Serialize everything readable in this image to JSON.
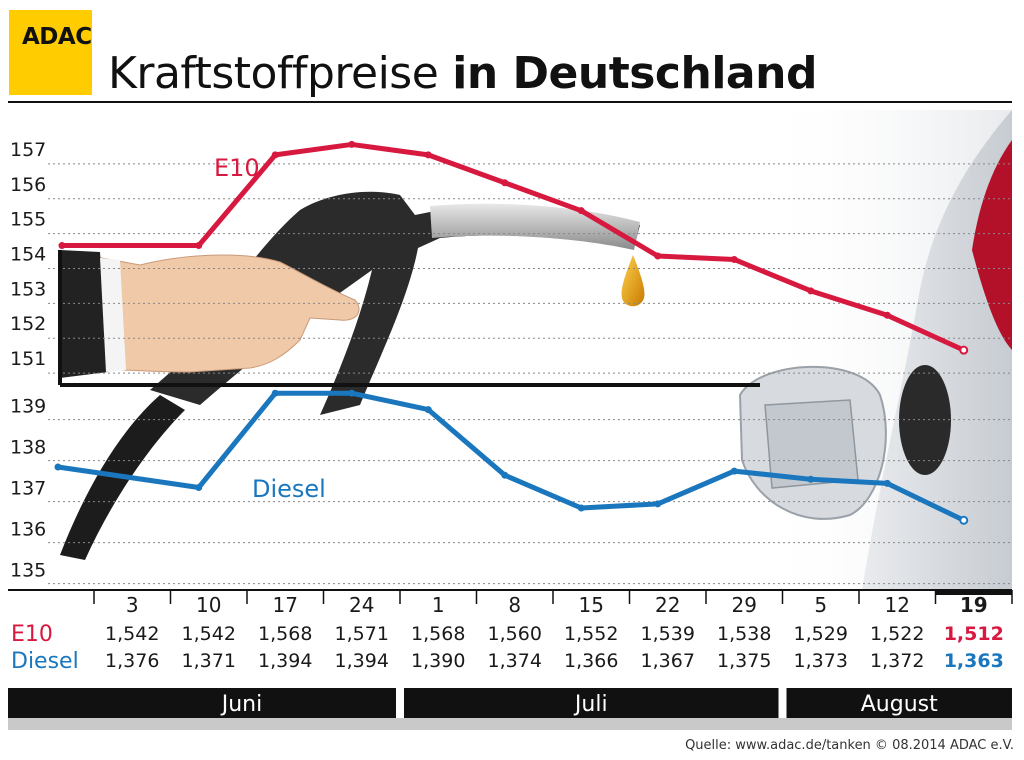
{
  "logo": "ADAC",
  "title": {
    "light": "Kraftstoffpreise",
    "bold": "in Deutschland"
  },
  "source": "Quelle: www.adac.de/tanken   © 08.2014  ADAC e.V.",
  "colors": {
    "e10": "#d7193f",
    "diesel": "#1b77bd",
    "accent": "#ffcc00",
    "dark": "#111111"
  },
  "illustration": [
    "fuel-nozzle",
    "hand",
    "oil-drop",
    "car-fuel-flap"
  ],
  "chart_data": {
    "type": "line",
    "title": "Kraftstoffpreise in Deutschland",
    "categories": [
      "3",
      "10",
      "17",
      "24",
      "1",
      "8",
      "15",
      "22",
      "29",
      "5",
      "12",
      "19"
    ],
    "series": [
      {
        "name": "E10",
        "color": "#d7193f",
        "values": [
          154.2,
          154.2,
          156.8,
          157.1,
          156.8,
          156.0,
          155.2,
          153.9,
          153.8,
          152.9,
          152.2,
          151.2
        ],
        "labels": [
          "1,542",
          "1,542",
          "1,568",
          "1,571",
          "1,568",
          "1,560",
          "1,552",
          "1,539",
          "1,538",
          "1,529",
          "1,522",
          "1,512"
        ],
        "ylim": [
          150.2,
          157.6
        ],
        "ticks": [
          151,
          152,
          153,
          154,
          155,
          156,
          157
        ]
      },
      {
        "name": "Diesel",
        "color": "#1b77bd",
        "values": [
          137.6,
          137.1,
          139.4,
          139.4,
          139.0,
          137.4,
          136.6,
          136.7,
          137.5,
          137.3,
          137.2,
          136.3
        ],
        "labels": [
          "1,376",
          "1,371",
          "1,394",
          "1,394",
          "1,390",
          "1,374",
          "1,366",
          "1,367",
          "1,375",
          "1,373",
          "1,372",
          "1,363"
        ],
        "ylim": [
          134.6,
          139.6
        ],
        "ticks": [
          135,
          136,
          137,
          138,
          139
        ]
      }
    ],
    "months": [
      {
        "name": "Juni",
        "from": 0,
        "to": 3
      },
      {
        "name": "Juli",
        "from": 4,
        "to": 8
      },
      {
        "name": "August",
        "from": 9,
        "to": 11
      }
    ],
    "grid": true,
    "axis_break": true,
    "legend": "left-of-table"
  }
}
